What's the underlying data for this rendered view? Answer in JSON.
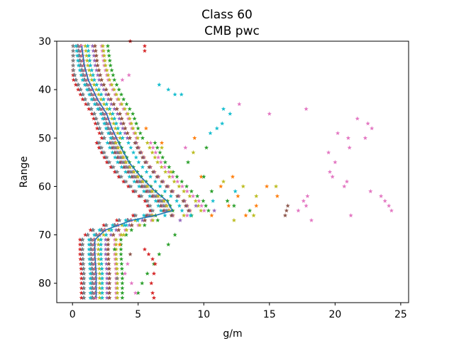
{
  "chart_data": {
    "type": "scatter",
    "title": "Class 60",
    "subtitle": "CMB pwc",
    "xlabel": "g/m",
    "ylabel": "Range",
    "xlim": [
      -1.2,
      25.6
    ],
    "ylim": [
      84,
      30
    ],
    "y_inverted": true,
    "x_ticks": [
      0,
      5,
      10,
      15,
      20,
      25
    ],
    "y_ticks": [
      30,
      40,
      50,
      60,
      70,
      80
    ],
    "grid": false,
    "marker": "star",
    "range_start": 31,
    "range_end": 83,
    "series": [
      {
        "name": "",
        "color": "#1f77b4",
        "shift": -0.15,
        "xs": [
          0.2,
          0.9
        ]
      },
      {
        "name": "",
        "color": "#ff7f0e",
        "shift": 0.55,
        "xs": [
          0.4,
          1.6
        ]
      },
      {
        "name": "",
        "color": "#2ca02c",
        "shift": 1.0,
        "xs": [
          0.5,
          2.2
        ]
      },
      {
        "name": "",
        "color": "#d62728",
        "shift": -0.4,
        "xs": [
          0.3,
          1.2
        ]
      },
      {
        "name": "",
        "color": "#9467bd",
        "shift": 0.2,
        "xs": [
          0.6,
          1.8
        ]
      },
      {
        "name": "",
        "color": "#8c564b",
        "shift": 0.75,
        "xs": [
          0.2,
          1.4
        ]
      },
      {
        "name": "",
        "color": "#e377c2",
        "shift": 0.35,
        "xs": [
          0.7,
          2.4
        ]
      },
      {
        "name": "",
        "color": "#7f7f7f",
        "shift": -0.2,
        "xs": [
          0.3,
          1.0
        ]
      },
      {
        "name": "",
        "color": "#bcbd22",
        "shift": 0.9,
        "xs": [
          0.4,
          1.9
        ]
      },
      {
        "name": "",
        "color": "#17becf",
        "shift": 0.1,
        "xs": [
          0.5,
          1.5
        ]
      }
    ],
    "outliers": [
      {
        "color": "#d62728",
        "x": 4.4,
        "y": 30
      },
      {
        "color": "#d62728",
        "x": 5.5,
        "y": 31
      },
      {
        "color": "#d62728",
        "x": 5.5,
        "y": 32
      },
      {
        "color": "#e377c2",
        "x": 3.8,
        "y": 38
      },
      {
        "color": "#e377c2",
        "x": 4.3,
        "y": 37
      },
      {
        "color": "#17becf",
        "x": 6.6,
        "y": 39
      },
      {
        "color": "#17becf",
        "x": 7.3,
        "y": 40
      },
      {
        "color": "#17becf",
        "x": 7.8,
        "y": 41
      },
      {
        "color": "#17becf",
        "x": 8.3,
        "y": 41
      },
      {
        "color": "#17becf",
        "x": 11.5,
        "y": 44
      },
      {
        "color": "#17becf",
        "x": 12.0,
        "y": 45
      },
      {
        "color": "#17becf",
        "x": 11.4,
        "y": 47
      },
      {
        "color": "#17becf",
        "x": 11.0,
        "y": 48
      },
      {
        "color": "#17becf",
        "x": 10.5,
        "y": 49
      },
      {
        "color": "#e377c2",
        "x": 12.7,
        "y": 43
      },
      {
        "color": "#e377c2",
        "x": 15.0,
        "y": 45
      },
      {
        "color": "#e377c2",
        "x": 17.8,
        "y": 44
      },
      {
        "color": "#e377c2",
        "x": 21.7,
        "y": 46
      },
      {
        "color": "#e377c2",
        "x": 22.5,
        "y": 47
      },
      {
        "color": "#e377c2",
        "x": 22.8,
        "y": 48
      },
      {
        "color": "#e377c2",
        "x": 20.2,
        "y": 49
      },
      {
        "color": "#e377c2",
        "x": 21.0,
        "y": 50
      },
      {
        "color": "#e377c2",
        "x": 22.3,
        "y": 50
      },
      {
        "color": "#e377c2",
        "x": 21.1,
        "y": 52
      },
      {
        "color": "#e377c2",
        "x": 19.5,
        "y": 53
      },
      {
        "color": "#e377c2",
        "x": 20.0,
        "y": 55
      },
      {
        "color": "#e377c2",
        "x": 19.6,
        "y": 57
      },
      {
        "color": "#e377c2",
        "x": 19.8,
        "y": 58
      },
      {
        "color": "#e377c2",
        "x": 20.9,
        "y": 59
      },
      {
        "color": "#e377c2",
        "x": 20.7,
        "y": 60
      },
      {
        "color": "#e377c2",
        "x": 22.7,
        "y": 61
      },
      {
        "color": "#e377c2",
        "x": 23.5,
        "y": 62
      },
      {
        "color": "#e377c2",
        "x": 23.8,
        "y": 63
      },
      {
        "color": "#e377c2",
        "x": 24.1,
        "y": 64
      },
      {
        "color": "#e377c2",
        "x": 24.3,
        "y": 65
      },
      {
        "color": "#e377c2",
        "x": 21.2,
        "y": 66
      },
      {
        "color": "#e377c2",
        "x": 18.2,
        "y": 67
      },
      {
        "color": "#e377c2",
        "x": 17.9,
        "y": 62
      },
      {
        "color": "#e377c2",
        "x": 17.6,
        "y": 63
      },
      {
        "color": "#e377c2",
        "x": 17.8,
        "y": 64
      },
      {
        "color": "#e377c2",
        "x": 17.2,
        "y": 65
      },
      {
        "color": "#e377c2",
        "x": 8.6,
        "y": 52
      },
      {
        "color": "#8c564b",
        "x": 16.4,
        "y": 64
      },
      {
        "color": "#8c564b",
        "x": 16.3,
        "y": 65
      },
      {
        "color": "#8c564b",
        "x": 16.2,
        "y": 66
      },
      {
        "color": "#ff7f0e",
        "x": 14.8,
        "y": 60
      },
      {
        "color": "#ff7f0e",
        "x": 15.6,
        "y": 62
      },
      {
        "color": "#ff7f0e",
        "x": 14.0,
        "y": 64
      },
      {
        "color": "#ff7f0e",
        "x": 13.2,
        "y": 66
      },
      {
        "color": "#ff7f0e",
        "x": 11.9,
        "y": 64
      },
      {
        "color": "#ff7f0e",
        "x": 10.6,
        "y": 66
      },
      {
        "color": "#ff7f0e",
        "x": 9.8,
        "y": 58
      },
      {
        "color": "#ff7f0e",
        "x": 9.3,
        "y": 50
      },
      {
        "color": "#ff7f0e",
        "x": 6.8,
        "y": 51
      },
      {
        "color": "#ff7f0e",
        "x": 5.6,
        "y": 48
      },
      {
        "color": "#ff7f0e",
        "x": 12.2,
        "y": 58
      },
      {
        "color": "#ff7f0e",
        "x": 11.3,
        "y": 60
      },
      {
        "color": "#ff7f0e",
        "x": 12.6,
        "y": 62
      },
      {
        "color": "#bcbd22",
        "x": 6.8,
        "y": 52
      },
      {
        "color": "#bcbd22",
        "x": 9.2,
        "y": 53
      },
      {
        "color": "#bcbd22",
        "x": 7.5,
        "y": 57
      },
      {
        "color": "#bcbd22",
        "x": 11.5,
        "y": 59
      },
      {
        "color": "#bcbd22",
        "x": 13.0,
        "y": 60
      },
      {
        "color": "#bcbd22",
        "x": 14.0,
        "y": 62
      },
      {
        "color": "#bcbd22",
        "x": 15.5,
        "y": 60
      },
      {
        "color": "#bcbd22",
        "x": 13.8,
        "y": 66
      },
      {
        "color": "#bcbd22",
        "x": 12.3,
        "y": 67
      },
      {
        "color": "#2ca02c",
        "x": 10.2,
        "y": 52
      },
      {
        "color": "#2ca02c",
        "x": 8.8,
        "y": 55
      },
      {
        "color": "#2ca02c",
        "x": 10.0,
        "y": 58
      },
      {
        "color": "#2ca02c",
        "x": 10.6,
        "y": 61
      },
      {
        "color": "#2ca02c",
        "x": 11.8,
        "y": 63
      },
      {
        "color": "#2ca02c",
        "x": 12.3,
        "y": 64
      },
      {
        "color": "#2ca02c",
        "x": 13.5,
        "y": 65
      },
      {
        "color": "#2ca02c",
        "x": 7.8,
        "y": 70
      },
      {
        "color": "#2ca02c",
        "x": 7.3,
        "y": 72
      },
      {
        "color": "#2ca02c",
        "x": 6.6,
        "y": 74
      },
      {
        "color": "#2ca02c",
        "x": 6.2,
        "y": 76
      },
      {
        "color": "#2ca02c",
        "x": 5.7,
        "y": 78
      },
      {
        "color": "#2ca02c",
        "x": 5.3,
        "y": 80
      },
      {
        "color": "#2ca02c",
        "x": 5.0,
        "y": 82
      },
      {
        "color": "#9467bd",
        "x": 9.4,
        "y": 64
      },
      {
        "color": "#9467bd",
        "x": 10.8,
        "y": 65
      },
      {
        "color": "#9467bd",
        "x": 8.2,
        "y": 67
      },
      {
        "color": "#17becf",
        "x": 12.4,
        "y": 61
      },
      {
        "color": "#17becf",
        "x": 10.7,
        "y": 63
      },
      {
        "color": "#17becf",
        "x": 9.0,
        "y": 66
      },
      {
        "color": "#d62728",
        "x": 5.5,
        "y": 73
      },
      {
        "color": "#d62728",
        "x": 5.8,
        "y": 74
      },
      {
        "color": "#d62728",
        "x": 6.1,
        "y": 75
      },
      {
        "color": "#d62728",
        "x": 6.3,
        "y": 76
      },
      {
        "color": "#d62728",
        "x": 6.2,
        "y": 78
      },
      {
        "color": "#d62728",
        "x": 6.0,
        "y": 80
      },
      {
        "color": "#d62728",
        "x": 6.1,
        "y": 82
      },
      {
        "color": "#d62728",
        "x": 6.2,
        "y": 83
      },
      {
        "color": "#e377c2",
        "x": 4.2,
        "y": 76
      },
      {
        "color": "#e377c2",
        "x": 4.0,
        "y": 78
      },
      {
        "color": "#e377c2",
        "x": 4.5,
        "y": 80
      },
      {
        "color": "#e377c2",
        "x": 4.8,
        "y": 82
      },
      {
        "color": "#17becf",
        "x": 4.1,
        "y": 68
      },
      {
        "color": "#bcbd22",
        "x": 3.9,
        "y": 70
      },
      {
        "color": "#8c564b",
        "x": 4.4,
        "y": 74
      },
      {
        "color": "#ff7f0e",
        "x": 3.6,
        "y": 72
      },
      {
        "color": "#2ca02c",
        "x": 3.2,
        "y": 73
      },
      {
        "color": "#7f7f7f",
        "x": 3.4,
        "y": 79
      }
    ],
    "mean_line": {
      "color": "#1f77b4",
      "points": [
        {
          "x": 0.7,
          "y": 31
        },
        {
          "x": 0.9,
          "y": 35
        },
        {
          "x": 1.2,
          "y": 38
        },
        {
          "x": 1.9,
          "y": 42
        },
        {
          "x": 2.6,
          "y": 45
        },
        {
          "x": 3.0,
          "y": 48
        },
        {
          "x": 3.7,
          "y": 52
        },
        {
          "x": 4.3,
          "y": 55
        },
        {
          "x": 5.2,
          "y": 58
        },
        {
          "x": 6.3,
          "y": 61
        },
        {
          "x": 7.2,
          "y": 63
        },
        {
          "x": 7.6,
          "y": 65
        },
        {
          "x": 6.3,
          "y": 66
        },
        {
          "x": 4.5,
          "y": 67
        },
        {
          "x": 2.5,
          "y": 69
        },
        {
          "x": 1.7,
          "y": 71
        },
        {
          "x": 1.7,
          "y": 74
        },
        {
          "x": 1.8,
          "y": 78
        },
        {
          "x": 1.8,
          "y": 83
        }
      ]
    }
  }
}
